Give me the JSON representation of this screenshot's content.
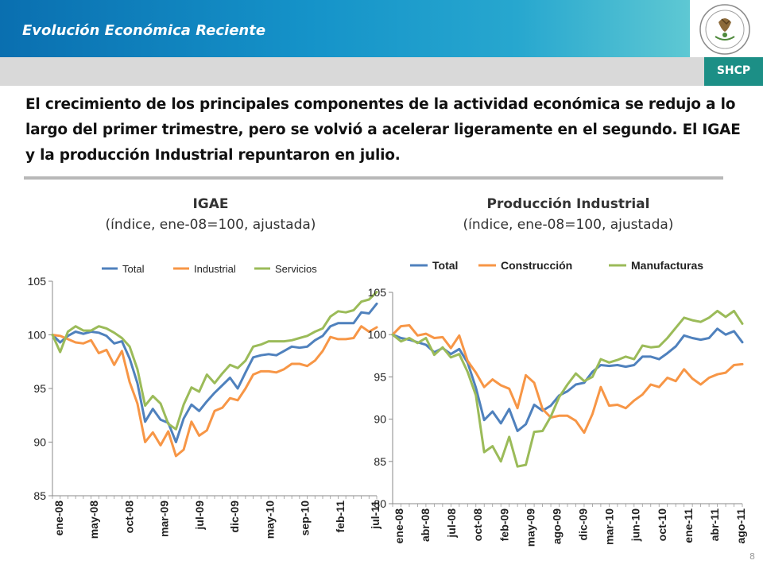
{
  "header": {
    "section_title": "Evolución Económica Reciente",
    "logo_text": "SHCP"
  },
  "headline": "El crecimiento de los principales componentes de la actividad económica se redujo a lo largo del primer trimestre, pero se volvió a acelerar ligeramente en el segundo. El IGAE y la producción Industrial repuntaron en julio.",
  "page_number": "8",
  "colors": {
    "total": "#4f81bd",
    "industrial": "#f79646",
    "servicios": "#9bbb59",
    "shcp_green": "#1c8f86"
  },
  "chart_data": [
    {
      "type": "line",
      "title": "IGAE",
      "subtitle": "(índice, ene-08=100, ajustada)",
      "ylim": [
        85,
        105
      ],
      "yticks": [
        "85",
        "90",
        "95",
        "100",
        "105"
      ],
      "xticks": [
        "ene-08",
        "may-08",
        "oct-08",
        "mar-09",
        "jul-09",
        "dic-09",
        "may-10",
        "sep-10",
        "feb-11",
        "jul-11"
      ],
      "legend_position": "top",
      "grid": false,
      "series": [
        {
          "name": "Total",
          "values": [
            100.0,
            99.3,
            99.9,
            100.3,
            100.1,
            100.3,
            100.2,
            99.9,
            99.2,
            99.4,
            97.8,
            95.5,
            91.9,
            93.1,
            92.1,
            91.8,
            90.0,
            92.2,
            93.5,
            92.9,
            93.8,
            94.6,
            95.3,
            96.0,
            95.0,
            96.5,
            97.9,
            98.1,
            98.2,
            98.1,
            98.5,
            98.9,
            98.8,
            98.9,
            99.5,
            99.9,
            100.8,
            101.1,
            101.1,
            101.1,
            102.1,
            102.0,
            102.9
          ]
        },
        {
          "name": "Industrial",
          "values": [
            100.0,
            99.9,
            99.6,
            99.3,
            99.2,
            99.5,
            98.3,
            98.6,
            97.2,
            98.5,
            95.6,
            93.6,
            90.0,
            90.9,
            89.7,
            91.0,
            88.7,
            89.3,
            91.9,
            90.6,
            91.1,
            92.9,
            93.2,
            94.1,
            93.9,
            95.0,
            96.3,
            96.6,
            96.6,
            96.5,
            96.8,
            97.3,
            97.3,
            97.1,
            97.6,
            98.5,
            99.8,
            99.6,
            99.6,
            99.7,
            100.8,
            100.3,
            100.7
          ]
        },
        {
          "name": "Servicios",
          "values": [
            100.0,
            98.4,
            100.3,
            100.8,
            100.4,
            100.4,
            100.8,
            100.6,
            100.2,
            99.7,
            98.9,
            96.8,
            93.4,
            94.3,
            93.6,
            91.7,
            91.2,
            93.5,
            95.1,
            94.7,
            96.3,
            95.5,
            96.4,
            97.2,
            96.9,
            97.6,
            98.9,
            99.1,
            99.4,
            99.4,
            99.4,
            99.5,
            99.7,
            99.9,
            100.3,
            100.6,
            101.7,
            102.2,
            102.1,
            102.3,
            103.1,
            103.3,
            104.0
          ]
        }
      ]
    },
    {
      "type": "line",
      "title": "Producción Industrial",
      "subtitle": "(índice, ene-08=100, ajustada)",
      "ylim": [
        80,
        105
      ],
      "yticks": [
        "80",
        "85",
        "90",
        "95",
        "100",
        "105"
      ],
      "xticks": [
        "ene-08",
        "abr-08",
        "jul-08",
        "oct-08",
        "feb-09",
        "may-09",
        "ago-09",
        "dic-09",
        "mar-10",
        "jun-10",
        "oct-10",
        "ene-11",
        "abr-11",
        "ago-11"
      ],
      "legend_position": "top",
      "grid": false,
      "series": [
        {
          "name": "Total",
          "values": [
            100.0,
            99.6,
            99.4,
            99.1,
            98.8,
            97.9,
            98.4,
            97.7,
            98.3,
            96.7,
            93.7,
            89.9,
            90.9,
            89.5,
            91.2,
            88.6,
            89.4,
            91.7,
            91.0,
            91.6,
            92.8,
            93.3,
            94.1,
            94.3,
            95.6,
            96.4,
            96.3,
            96.4,
            96.2,
            96.4,
            97.4,
            97.4,
            97.1,
            97.8,
            98.6,
            99.9,
            99.6,
            99.4,
            99.6,
            100.7,
            100.0,
            100.4,
            99.1
          ]
        },
        {
          "name": "Construcción",
          "values": [
            100.0,
            101.0,
            101.1,
            99.9,
            100.1,
            99.6,
            99.7,
            98.4,
            99.9,
            96.9,
            95.5,
            93.8,
            94.7,
            94.0,
            93.6,
            91.3,
            95.2,
            94.3,
            91.2,
            90.2,
            90.4,
            90.4,
            89.8,
            88.4,
            90.6,
            93.8,
            91.6,
            91.7,
            91.3,
            92.2,
            92.9,
            94.1,
            93.8,
            94.9,
            94.5,
            95.9,
            94.8,
            94.1,
            94.9,
            95.3,
            95.5,
            96.4,
            96.5
          ]
        },
        {
          "name": "Manufacturas",
          "values": [
            100.0,
            99.2,
            99.6,
            99.0,
            99.6,
            97.6,
            98.5,
            97.3,
            97.7,
            95.6,
            92.8,
            86.1,
            86.8,
            85.0,
            87.9,
            84.4,
            84.6,
            88.5,
            88.6,
            90.3,
            92.6,
            94.1,
            95.4,
            94.5,
            95.0,
            97.1,
            96.7,
            97.0,
            97.4,
            97.1,
            98.7,
            98.5,
            98.6,
            99.6,
            100.8,
            102.0,
            101.7,
            101.5,
            102.0,
            102.8,
            102.1,
            102.8,
            101.3
          ]
        }
      ]
    }
  ]
}
